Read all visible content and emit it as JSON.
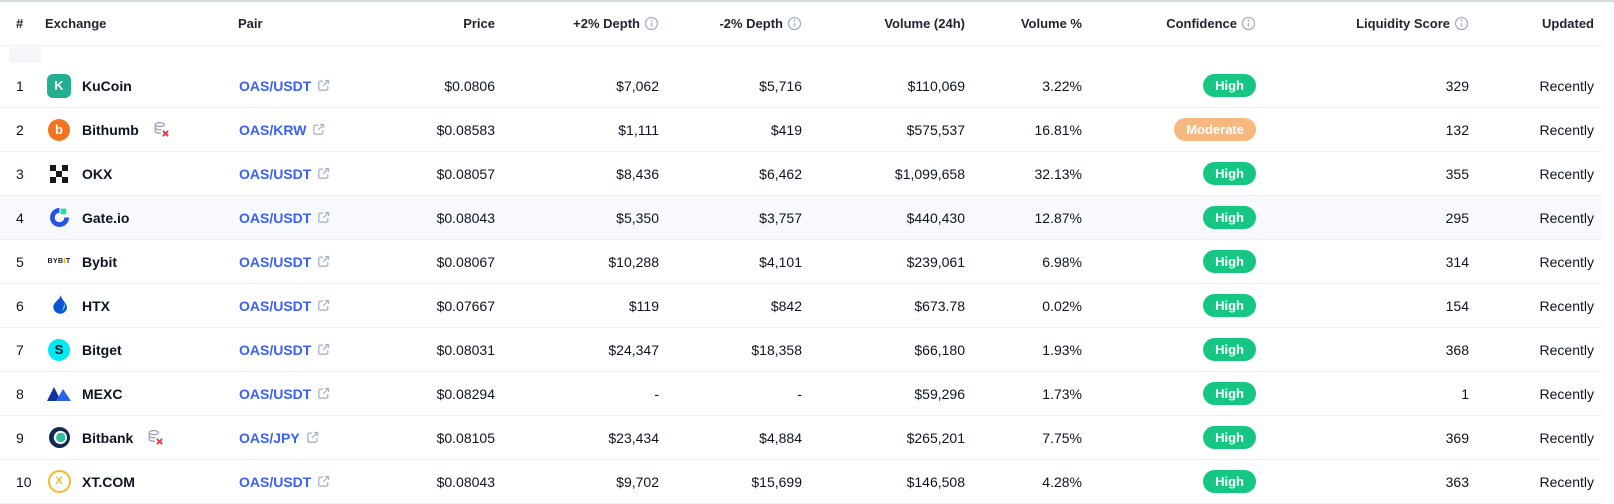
{
  "colors": {
    "link_blue": "#3861fb",
    "confidence_high": "#16c784",
    "confidence_moderate": "#f6b87e",
    "row_highlight": "#f8f9fd",
    "divider": "#eff2f5",
    "text": "#0d1421"
  },
  "table": {
    "columns": [
      {
        "key": "rank",
        "label": "#",
        "info": false
      },
      {
        "key": "exchange",
        "label": "Exchange",
        "info": false
      },
      {
        "key": "pair",
        "label": "Pair",
        "info": false
      },
      {
        "key": "price",
        "label": "Price",
        "info": false
      },
      {
        "key": "depth_plus",
        "label": "+2% Depth",
        "info": true
      },
      {
        "key": "depth_minus",
        "label": "-2% Depth",
        "info": true
      },
      {
        "key": "volume_24h",
        "label": "Volume (24h)",
        "info": false
      },
      {
        "key": "volume_pct",
        "label": "Volume %",
        "info": false
      },
      {
        "key": "confidence",
        "label": "Confidence",
        "info": true
      },
      {
        "key": "liquidity",
        "label": "Liquidity Score",
        "info": true
      },
      {
        "key": "updated",
        "label": "Updated",
        "info": false
      }
    ],
    "rows": [
      {
        "rank": "1",
        "exchange": "KuCoin",
        "logo": "kucoin-logo",
        "stale": false,
        "highlighted": false,
        "pair": "OAS/USDT",
        "price": "$0.0806",
        "depth_plus": "$7,062",
        "depth_minus": "$5,716",
        "volume_24h": "$110,069",
        "volume_pct": "3.22%",
        "confidence": "High",
        "confidence_level": "high",
        "liquidity": "329",
        "updated": "Recently"
      },
      {
        "rank": "2",
        "exchange": "Bithumb",
        "logo": "bithumb-logo",
        "stale": true,
        "highlighted": false,
        "pair": "OAS/KRW",
        "price": "$0.08583",
        "depth_plus": "$1,111",
        "depth_minus": "$419",
        "volume_24h": "$575,537",
        "volume_pct": "16.81%",
        "confidence": "Moderate",
        "confidence_level": "moderate",
        "liquidity": "132",
        "updated": "Recently"
      },
      {
        "rank": "3",
        "exchange": "OKX",
        "logo": "okx-logo",
        "stale": false,
        "highlighted": false,
        "pair": "OAS/USDT",
        "price": "$0.08057",
        "depth_plus": "$8,436",
        "depth_minus": "$6,462",
        "volume_24h": "$1,099,658",
        "volume_pct": "32.13%",
        "confidence": "High",
        "confidence_level": "high",
        "liquidity": "355",
        "updated": "Recently"
      },
      {
        "rank": "4",
        "exchange": "Gate.io",
        "logo": "gateio-logo",
        "stale": false,
        "highlighted": true,
        "pair": "OAS/USDT",
        "price": "$0.08043",
        "depth_plus": "$5,350",
        "depth_minus": "$3,757",
        "volume_24h": "$440,430",
        "volume_pct": "12.87%",
        "confidence": "High",
        "confidence_level": "high",
        "liquidity": "295",
        "updated": "Recently"
      },
      {
        "rank": "5",
        "exchange": "Bybit",
        "logo": "bybit-logo",
        "stale": false,
        "highlighted": false,
        "pair": "OAS/USDT",
        "price": "$0.08067",
        "depth_plus": "$10,288",
        "depth_minus": "$4,101",
        "volume_24h": "$239,061",
        "volume_pct": "6.98%",
        "confidence": "High",
        "confidence_level": "high",
        "liquidity": "314",
        "updated": "Recently"
      },
      {
        "rank": "6",
        "exchange": "HTX",
        "logo": "htx-logo",
        "stale": false,
        "highlighted": false,
        "pair": "OAS/USDT",
        "price": "$0.07667",
        "depth_plus": "$119",
        "depth_minus": "$842",
        "volume_24h": "$673.78",
        "volume_pct": "0.02%",
        "confidence": "High",
        "confidence_level": "high",
        "liquidity": "154",
        "updated": "Recently"
      },
      {
        "rank": "7",
        "exchange": "Bitget",
        "logo": "bitget-logo",
        "stale": false,
        "highlighted": false,
        "pair": "OAS/USDT",
        "price": "$0.08031",
        "depth_plus": "$24,347",
        "depth_minus": "$18,358",
        "volume_24h": "$66,180",
        "volume_pct": "1.93%",
        "confidence": "High",
        "confidence_level": "high",
        "liquidity": "368",
        "updated": "Recently"
      },
      {
        "rank": "8",
        "exchange": "MEXC",
        "logo": "mexc-logo",
        "stale": false,
        "highlighted": false,
        "pair": "OAS/USDT",
        "price": "$0.08294",
        "depth_plus": "-",
        "depth_minus": "-",
        "volume_24h": "$59,296",
        "volume_pct": "1.73%",
        "confidence": "High",
        "confidence_level": "high",
        "liquidity": "1",
        "updated": "Recently"
      },
      {
        "rank": "9",
        "exchange": "Bitbank",
        "logo": "bitbank-logo",
        "stale": true,
        "highlighted": false,
        "pair": "OAS/JPY",
        "price": "$0.08105",
        "depth_plus": "$23,434",
        "depth_minus": "$4,884",
        "volume_24h": "$265,201",
        "volume_pct": "7.75%",
        "confidence": "High",
        "confidence_level": "high",
        "liquidity": "369",
        "updated": "Recently"
      },
      {
        "rank": "10",
        "exchange": "XT.COM",
        "logo": "xt-logo",
        "stale": false,
        "highlighted": false,
        "pair": "OAS/USDT",
        "price": "$0.08043",
        "depth_plus": "$9,702",
        "depth_minus": "$15,699",
        "volume_24h": "$146,508",
        "volume_pct": "4.28%",
        "confidence": "High",
        "confidence_level": "high",
        "liquidity": "363",
        "updated": "Recently"
      }
    ]
  }
}
